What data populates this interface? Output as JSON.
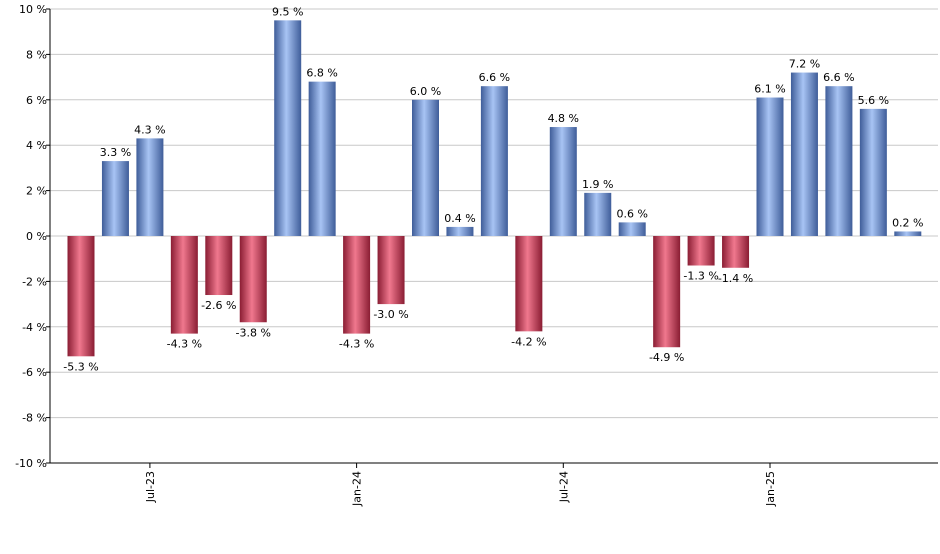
{
  "chart_data": {
    "type": "bar",
    "title": "",
    "xlabel": "",
    "ylabel": "",
    "ylim": [
      -10,
      10
    ],
    "y_ticks": [
      -10,
      -8,
      -6,
      -4,
      -2,
      0,
      2,
      4,
      6,
      8,
      10
    ],
    "y_tick_suffix": " %",
    "grid": true,
    "x_tick_labels": [
      {
        "label": "Jul-23",
        "bar_index": 2
      },
      {
        "label": "Jan-24",
        "bar_index": 8
      },
      {
        "label": "Jul-24",
        "bar_index": 14
      },
      {
        "label": "Jan-25",
        "bar_index": 20
      }
    ],
    "values": [
      -5.3,
      3.3,
      4.3,
      -4.3,
      -2.6,
      -3.8,
      9.5,
      6.8,
      -4.3,
      -3.0,
      6.0,
      0.4,
      6.6,
      -4.2,
      4.8,
      1.9,
      0.6,
      -4.9,
      -1.3,
      -1.4,
      6.1,
      7.2,
      6.6,
      5.6,
      0.2
    ],
    "value_labels": [
      "-5.3 %",
      "3.3 %",
      "4.3 %",
      "-4.3 %",
      "-2.6 %",
      "-3.8 %",
      "9.5 %",
      "6.8 %",
      "-4.3 %",
      "-3.0 %",
      "6.0 %",
      "0.4 %",
      "6.6 %",
      "-4.2 %",
      "4.8 %",
      "1.9 %",
      "0.6 %",
      "-4.9 %",
      "-1.3 %",
      "-1.4 %",
      "6.1 %",
      "7.2 %",
      "6.6 %",
      "5.6 %",
      "0.2 %"
    ],
    "colors": {
      "positive": "#6f96dd",
      "positive_light": "#a8c4f4",
      "positive_dark": "#3f5d99",
      "negative": "#c93650",
      "negative_light": "#f0788e",
      "negative_dark": "#8a1d33",
      "grid": "#c8c8c8",
      "axis": "#000000"
    }
  }
}
